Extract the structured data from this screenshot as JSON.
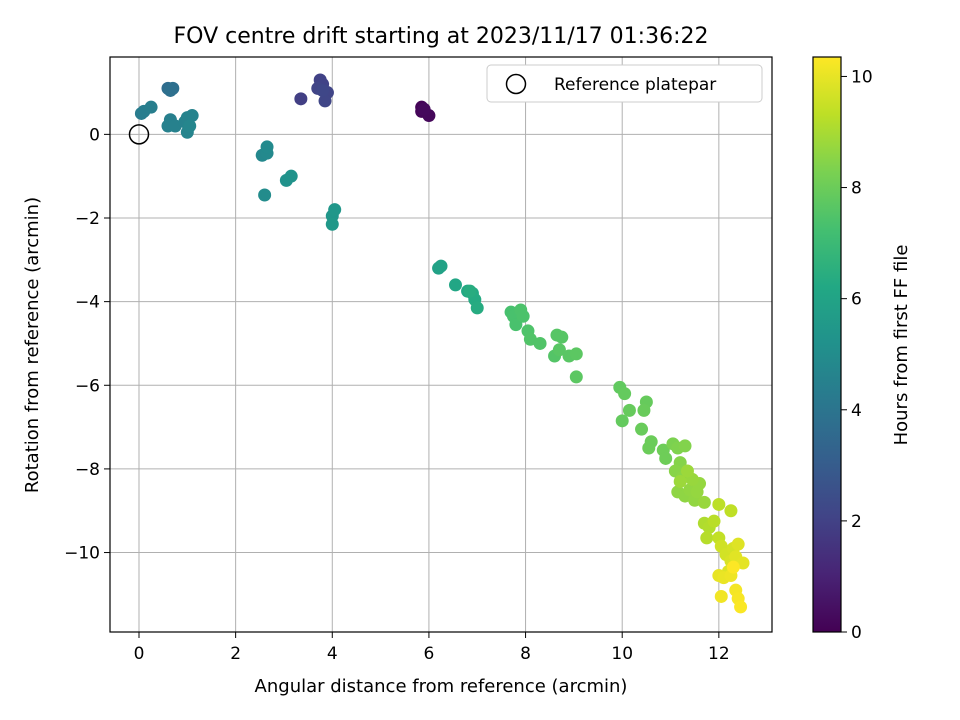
{
  "chart_data": {
    "type": "scatter",
    "title": "FOV centre drift starting at 2023/11/17 01:36:22",
    "xlabel": "Angular distance from reference (arcmin)",
    "ylabel": "Rotation from reference (arcmin)",
    "colorbar_label": "Hours from first FF file",
    "xlim": [
      -0.6,
      13.1
    ],
    "ylim": [
      -11.9,
      1.85
    ],
    "x_ticks": [
      0,
      2,
      4,
      6,
      8,
      10,
      12
    ],
    "y_ticks": [
      0,
      -2,
      -4,
      -6,
      -8,
      -10
    ],
    "colorbar_range": [
      0,
      10.35
    ],
    "colorbar_ticks": [
      0,
      2,
      4,
      6,
      8,
      10
    ],
    "colormap": "viridis",
    "grid": true,
    "legend": {
      "placement": "top-right",
      "entries": [
        "Reference platepar"
      ]
    },
    "reference_point": {
      "x": 0,
      "y": 0
    },
    "series": [
      {
        "name": "",
        "points": [
          [
            5.85,
            0.65,
            0.1
          ],
          [
            5.85,
            0.55,
            0.15
          ],
          [
            6.0,
            0.45,
            0.2
          ],
          [
            5.9,
            0.6,
            0.25
          ],
          [
            3.35,
            0.85,
            1.9
          ],
          [
            3.75,
            1.3,
            2.0
          ],
          [
            3.8,
            1.2,
            2.05
          ],
          [
            3.7,
            1.1,
            2.1
          ],
          [
            3.9,
            1.0,
            2.1
          ],
          [
            3.85,
            0.8,
            2.15
          ],
          [
            3.8,
            1.05,
            2.2
          ],
          [
            0.6,
            1.1,
            3.7
          ],
          [
            0.7,
            1.1,
            3.75
          ],
          [
            0.65,
            1.05,
            3.8
          ],
          [
            0.05,
            0.5,
            4.3
          ],
          [
            0.1,
            0.55,
            4.35
          ],
          [
            0.25,
            0.65,
            4.4
          ],
          [
            0.65,
            0.35,
            4.45
          ],
          [
            0.6,
            0.2,
            4.5
          ],
          [
            0.75,
            0.2,
            4.5
          ],
          [
            0.95,
            0.3,
            4.55
          ],
          [
            1.0,
            0.4,
            4.6
          ],
          [
            1.1,
            0.45,
            4.6
          ],
          [
            1.0,
            0.05,
            4.65
          ],
          [
            1.05,
            0.2,
            4.7
          ],
          [
            2.55,
            -0.5,
            4.8
          ],
          [
            2.65,
            -0.45,
            4.85
          ],
          [
            2.65,
            -0.3,
            4.9
          ],
          [
            2.6,
            -1.45,
            4.95
          ],
          [
            3.05,
            -1.1,
            5.2
          ],
          [
            3.15,
            -1.0,
            5.25
          ],
          [
            4.0,
            -1.95,
            5.4
          ],
          [
            4.05,
            -1.8,
            5.45
          ],
          [
            4.0,
            -2.15,
            5.5
          ],
          [
            6.2,
            -3.2,
            5.9
          ],
          [
            6.25,
            -3.15,
            5.95
          ],
          [
            6.55,
            -3.6,
            6.1
          ],
          [
            6.8,
            -3.75,
            6.2
          ],
          [
            6.9,
            -3.8,
            6.25
          ],
          [
            6.95,
            -3.95,
            6.3
          ],
          [
            7.0,
            -4.15,
            6.35
          ],
          [
            6.85,
            -3.75,
            6.4
          ],
          [
            7.7,
            -4.25,
            7.3
          ],
          [
            7.75,
            -4.35,
            7.35
          ],
          [
            7.8,
            -4.55,
            7.35
          ],
          [
            7.9,
            -4.2,
            7.4
          ],
          [
            7.95,
            -4.35,
            7.4
          ],
          [
            8.05,
            -4.7,
            7.45
          ],
          [
            8.1,
            -4.9,
            7.5
          ],
          [
            8.3,
            -5.0,
            7.5
          ],
          [
            8.6,
            -5.3,
            7.55
          ],
          [
            8.65,
            -4.8,
            7.6
          ],
          [
            8.75,
            -4.85,
            7.6
          ],
          [
            8.7,
            -5.15,
            7.65
          ],
          [
            8.9,
            -5.3,
            7.65
          ],
          [
            9.05,
            -5.25,
            7.7
          ],
          [
            9.05,
            -5.8,
            7.7
          ],
          [
            9.95,
            -6.05,
            7.8
          ],
          [
            10.05,
            -6.2,
            7.85
          ],
          [
            10.0,
            -6.85,
            7.85
          ],
          [
            10.15,
            -6.6,
            7.9
          ],
          [
            10.5,
            -6.4,
            7.9
          ],
          [
            10.45,
            -6.6,
            7.95
          ],
          [
            10.4,
            -7.05,
            7.95
          ],
          [
            10.55,
            -7.5,
            8.0
          ],
          [
            10.6,
            -7.35,
            8.0
          ],
          [
            10.85,
            -7.55,
            8.05
          ],
          [
            10.9,
            -7.75,
            8.05
          ],
          [
            11.05,
            -7.4,
            8.3
          ],
          [
            11.15,
            -7.5,
            8.35
          ],
          [
            11.3,
            -7.45,
            8.4
          ],
          [
            11.2,
            -7.85,
            8.45
          ],
          [
            11.1,
            -8.05,
            8.5
          ],
          [
            11.25,
            -8.2,
            8.55
          ],
          [
            11.15,
            -8.55,
            8.6
          ],
          [
            11.3,
            -8.65,
            8.6
          ],
          [
            11.4,
            -8.5,
            8.65
          ],
          [
            11.5,
            -8.75,
            8.65
          ],
          [
            11.55,
            -8.55,
            8.7
          ],
          [
            11.6,
            -8.35,
            8.7
          ],
          [
            11.45,
            -8.25,
            8.75
          ],
          [
            11.7,
            -8.8,
            8.75
          ],
          [
            11.35,
            -8.05,
            8.8
          ],
          [
            11.2,
            -8.3,
            8.8
          ],
          [
            11.7,
            -9.3,
            9.1
          ],
          [
            11.8,
            -9.4,
            9.15
          ],
          [
            11.75,
            -9.65,
            9.2
          ],
          [
            11.9,
            -9.25,
            9.25
          ],
          [
            12.0,
            -8.85,
            9.3
          ],
          [
            12.25,
            -9.0,
            9.35
          ],
          [
            12.0,
            -9.65,
            9.4
          ],
          [
            12.05,
            -9.85,
            9.6
          ],
          [
            12.15,
            -10.05,
            9.65
          ],
          [
            12.3,
            -9.9,
            9.7
          ],
          [
            12.25,
            -10.2,
            9.75
          ],
          [
            12.2,
            -10.45,
            9.8
          ],
          [
            12.4,
            -9.8,
            9.85
          ],
          [
            12.35,
            -10.1,
            9.9
          ],
          [
            12.5,
            -10.25,
            9.95
          ],
          [
            12.0,
            -10.55,
            10.0
          ],
          [
            12.1,
            -10.6,
            10.05
          ],
          [
            12.25,
            -10.55,
            10.1
          ],
          [
            12.05,
            -11.05,
            10.15
          ],
          [
            12.35,
            -10.9,
            10.2
          ],
          [
            12.4,
            -11.1,
            10.25
          ],
          [
            12.45,
            -11.3,
            10.3
          ],
          [
            12.3,
            -10.35,
            10.33
          ]
        ]
      }
    ]
  }
}
